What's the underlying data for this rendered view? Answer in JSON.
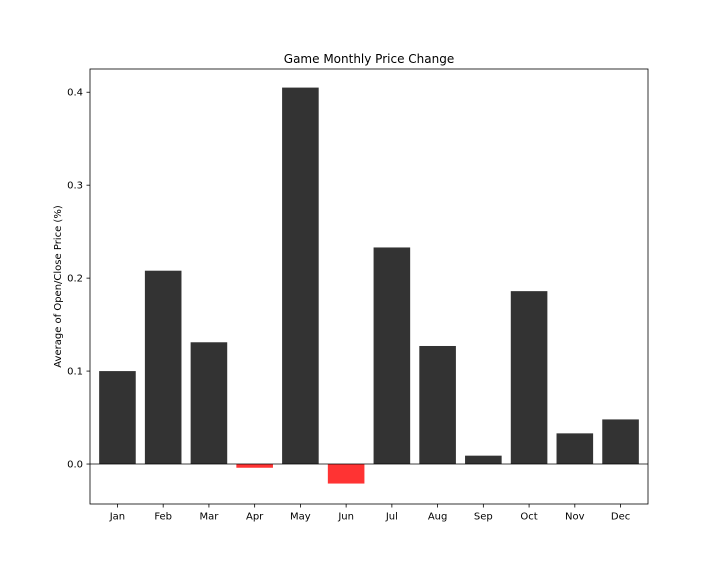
{
  "chart_data": {
    "type": "bar",
    "title": "Game Monthly Price Change",
    "xlabel": "",
    "ylabel": "Average of Open/Close Price (%)",
    "categories": [
      "Jan",
      "Feb",
      "Mar",
      "Apr",
      "May",
      "Jun",
      "Jul",
      "Aug",
      "Sep",
      "Oct",
      "Nov",
      "Dec"
    ],
    "values": [
      0.1,
      0.208,
      0.131,
      -0.004,
      0.405,
      -0.021,
      0.233,
      0.127,
      0.009,
      0.186,
      0.033,
      0.048
    ],
    "ylim": [
      -0.043,
      0.425
    ],
    "yticks": [
      0.0,
      0.1,
      0.2,
      0.3,
      0.4
    ],
    "ytick_labels": [
      "0.0",
      "0.1",
      "0.2",
      "0.3",
      "0.4"
    ],
    "zero_line": true,
    "grid": false,
    "colors": {
      "positive": "#333333",
      "negative": "#ff3333",
      "axis": "#000000"
    }
  }
}
